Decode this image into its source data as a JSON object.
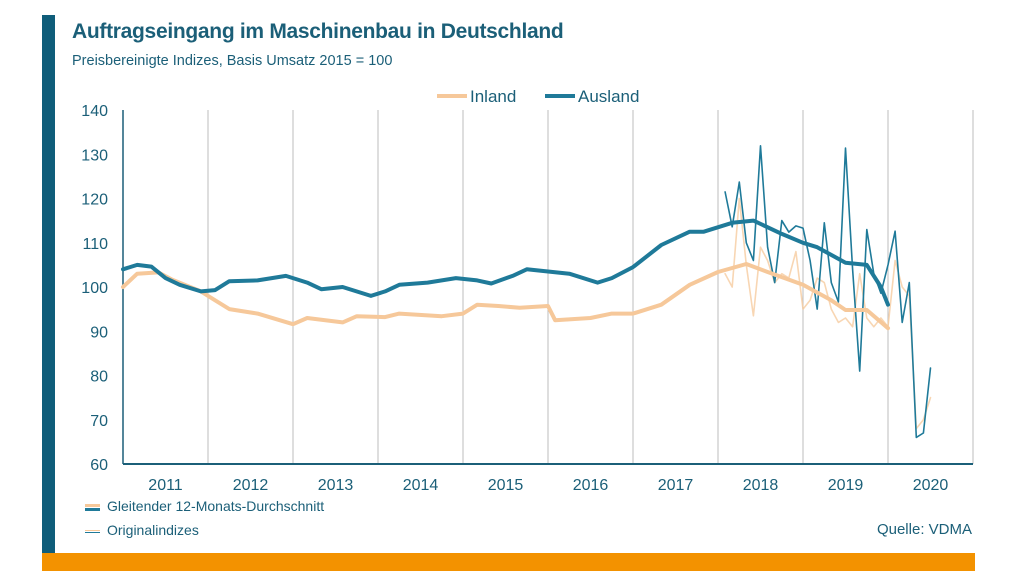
{
  "chart_data": {
    "type": "line",
    "title": "Auftragseingang im Maschinenbau in Deutschland",
    "subtitle": "Preisbereinigte Indizes, Basis Umsatz 2015 = 100",
    "xlabel": "",
    "ylabel": "",
    "ylim": [
      60,
      140
    ],
    "yticks": [
      "60",
      "70",
      "80",
      "90",
      "100",
      "110",
      "120",
      "130",
      "140"
    ],
    "xlim": [
      "2011-01",
      "2020-12"
    ],
    "xticks": [
      "2011",
      "2012",
      "2013",
      "2014",
      "2015",
      "2016",
      "2017",
      "2018",
      "2019",
      "2020"
    ],
    "grid": "vertical-yearly",
    "legend": {
      "placement": "top-right",
      "entries": [
        {
          "name": "Inland",
          "color": "#f6c89a"
        },
        {
          "name": "Ausland",
          "color": "#1f7a99"
        }
      ]
    },
    "style_legend": {
      "moving_average": "Gleitender 12-Monats-Durchschnitt",
      "original": "Originalindizes"
    },
    "source": "Quelle: VDMA",
    "series": [
      {
        "name": "Inland",
        "kind": "moving_average",
        "color": "#f6c89a",
        "points": [
          [
            "2011-01",
            100
          ],
          [
            "2011-03",
            103
          ],
          [
            "2011-06",
            103.3
          ],
          [
            "2011-08",
            101.6
          ],
          [
            "2011-12",
            99
          ],
          [
            "2012-02",
            97
          ],
          [
            "2012-04",
            95
          ],
          [
            "2012-08",
            94
          ],
          [
            "2013-01",
            91.6
          ],
          [
            "2013-03",
            93
          ],
          [
            "2013-08",
            92
          ],
          [
            "2013-10",
            93.4
          ],
          [
            "2014-02",
            93.2
          ],
          [
            "2014-04",
            94
          ],
          [
            "2014-10",
            93.4
          ],
          [
            "2015-01",
            94
          ],
          [
            "2015-03",
            96
          ],
          [
            "2015-06",
            95.7
          ],
          [
            "2015-09",
            95.3
          ],
          [
            "2016-01",
            95.7
          ],
          [
            "2016-02",
            92.5
          ],
          [
            "2016-07",
            93
          ],
          [
            "2016-10",
            94
          ],
          [
            "2017-01",
            94
          ],
          [
            "2017-05",
            96
          ],
          [
            "2017-09",
            100.5
          ],
          [
            "2018-01",
            103.4
          ],
          [
            "2018-05",
            105.2
          ],
          [
            "2018-08",
            103.4
          ],
          [
            "2019-01",
            100.5
          ],
          [
            "2019-05",
            97
          ],
          [
            "2019-07",
            94.8
          ],
          [
            "2019-10",
            94.8
          ],
          [
            "2020-01",
            90.7
          ]
        ]
      },
      {
        "name": "Ausland",
        "kind": "moving_average",
        "color": "#1f7a99",
        "points": [
          [
            "2011-01",
            104
          ],
          [
            "2011-03",
            105
          ],
          [
            "2011-05",
            104.6
          ],
          [
            "2011-07",
            102
          ],
          [
            "2011-09",
            100.5
          ],
          [
            "2011-12",
            99
          ],
          [
            "2012-02",
            99.3
          ],
          [
            "2012-04",
            101.3
          ],
          [
            "2012-08",
            101.5
          ],
          [
            "2012-12",
            102.5
          ],
          [
            "2013-03",
            101
          ],
          [
            "2013-05",
            99.5
          ],
          [
            "2013-08",
            100
          ],
          [
            "2013-12",
            98
          ],
          [
            "2014-02",
            99
          ],
          [
            "2014-04",
            100.5
          ],
          [
            "2014-08",
            101
          ],
          [
            "2014-12",
            102
          ],
          [
            "2015-03",
            101.5
          ],
          [
            "2015-05",
            100.8
          ],
          [
            "2015-08",
            102.5
          ],
          [
            "2015-10",
            104
          ],
          [
            "2016-01",
            103.5
          ],
          [
            "2016-04",
            103
          ],
          [
            "2016-08",
            101
          ],
          [
            "2016-10",
            102
          ],
          [
            "2017-01",
            104.5
          ],
          [
            "2017-05",
            109.5
          ],
          [
            "2017-09",
            112.5
          ],
          [
            "2017-11",
            112.5
          ],
          [
            "2018-03",
            114.5
          ],
          [
            "2018-06",
            115
          ],
          [
            "2018-10",
            112
          ],
          [
            "2019-01",
            110
          ],
          [
            "2019-03",
            109
          ],
          [
            "2019-07",
            105.5
          ],
          [
            "2019-10",
            105
          ],
          [
            "2019-12",
            100
          ],
          [
            "2020-01",
            96
          ]
        ]
      },
      {
        "name": "Inland",
        "kind": "original",
        "color": "#f6c89a",
        "points": [
          [
            "2018-02",
            103
          ],
          [
            "2018-03",
            100
          ],
          [
            "2018-04",
            120
          ],
          [
            "2018-05",
            105
          ],
          [
            "2018-06",
            93.5
          ],
          [
            "2018-07",
            109
          ],
          [
            "2018-08",
            106
          ],
          [
            "2018-09",
            101
          ],
          [
            "2018-10",
            103
          ],
          [
            "2018-11",
            102
          ],
          [
            "2018-12",
            108
          ],
          [
            "2019-01",
            95
          ],
          [
            "2019-02",
            97
          ],
          [
            "2019-03",
            102
          ],
          [
            "2019-04",
            101
          ],
          [
            "2019-05",
            95
          ],
          [
            "2019-06",
            92
          ],
          [
            "2019-07",
            93
          ],
          [
            "2019-08",
            91
          ],
          [
            "2019-09",
            103
          ],
          [
            "2019-10",
            93
          ],
          [
            "2019-11",
            91
          ],
          [
            "2019-12",
            93
          ],
          [
            "2020-01",
            91
          ],
          [
            "2020-02",
            106
          ],
          [
            "2020-03",
            100
          ],
          [
            "2020-04",
            98
          ],
          [
            "2020-05",
            68
          ],
          [
            "2020-06",
            70
          ],
          [
            "2020-07",
            75
          ]
        ]
      },
      {
        "name": "Ausland",
        "kind": "original",
        "color": "#1f7a99",
        "points": [
          [
            "2018-02",
            121.5
          ],
          [
            "2018-03",
            113.6
          ],
          [
            "2018-04",
            123.7
          ],
          [
            "2018-05",
            110
          ],
          [
            "2018-06",
            106
          ],
          [
            "2018-07",
            131.9
          ],
          [
            "2018-08",
            109
          ],
          [
            "2018-09",
            101
          ],
          [
            "2018-10",
            115
          ],
          [
            "2018-11",
            112.4
          ],
          [
            "2018-12",
            113.8
          ],
          [
            "2019-01",
            113.3
          ],
          [
            "2019-02",
            106
          ],
          [
            "2019-03",
            95
          ],
          [
            "2019-04",
            114.5
          ],
          [
            "2019-05",
            101
          ],
          [
            "2019-06",
            96.6
          ],
          [
            "2019-07",
            131.4
          ],
          [
            "2019-08",
            104
          ],
          [
            "2019-09",
            81
          ],
          [
            "2019-10",
            113
          ],
          [
            "2019-11",
            103
          ],
          [
            "2019-12",
            98.6
          ],
          [
            "2020-01",
            105
          ],
          [
            "2020-02",
            112.6
          ],
          [
            "2020-03",
            92
          ],
          [
            "2020-04",
            101
          ],
          [
            "2020-05",
            66
          ],
          [
            "2020-06",
            67
          ],
          [
            "2020-07",
            81.7
          ]
        ]
      }
    ]
  }
}
